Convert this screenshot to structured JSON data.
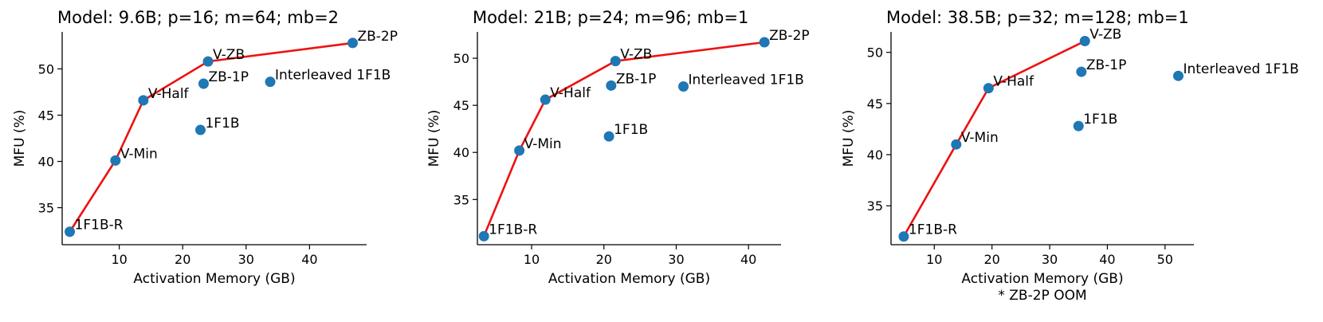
{
  "chart_data": [
    {
      "type": "scatter",
      "title": "Model: 9.6B; p=16; m=64; mb=2",
      "xlabel": "Activation Memory (GB)",
      "ylabel": "MFU (%)",
      "note": "",
      "xlim": [
        1,
        49
      ],
      "ylim": [
        31,
        54
      ],
      "xticks": [
        10,
        20,
        30,
        40
      ],
      "yticks": [
        35,
        40,
        45,
        50
      ],
      "frontier_color": "#ee1111",
      "point_color": "#1f77b4",
      "frontier": [
        "1F1B-R",
        "V-Min",
        "V-Half",
        "V-ZB",
        "ZB-2P"
      ],
      "points": [
        {
          "label": "1F1B-R",
          "x": 2.2,
          "y": 32.4
        },
        {
          "label": "V-Min",
          "x": 9.4,
          "y": 40.1
        },
        {
          "label": "V-Half",
          "x": 13.8,
          "y": 46.6
        },
        {
          "label": "V-ZB",
          "x": 24.0,
          "y": 50.8
        },
        {
          "label": "ZB-1P",
          "x": 23.3,
          "y": 48.4
        },
        {
          "label": "1F1B",
          "x": 22.8,
          "y": 43.4
        },
        {
          "label": "Interleaved 1F1B",
          "x": 33.8,
          "y": 48.6
        },
        {
          "label": "ZB-2P",
          "x": 46.8,
          "y": 52.8
        }
      ]
    },
    {
      "type": "scatter",
      "title": "Model: 21B; p=24; m=96; mb=1",
      "xlabel": "Activation Memory (GB)",
      "ylabel": "MFU (%)",
      "note": "",
      "xlim": [
        2.5,
        44.5
      ],
      "ylim": [
        30.2,
        52.8
      ],
      "xticks": [
        10,
        20,
        30,
        40
      ],
      "yticks": [
        35,
        40,
        45,
        50
      ],
      "frontier_color": "#ee1111",
      "point_color": "#1f77b4",
      "frontier": [
        "1F1B-R",
        "V-Min",
        "V-Half",
        "V-ZB",
        "ZB-2P"
      ],
      "points": [
        {
          "label": "1F1B-R",
          "x": 3.4,
          "y": 31.1
        },
        {
          "label": "V-Min",
          "x": 8.3,
          "y": 40.2
        },
        {
          "label": "V-Half",
          "x": 11.9,
          "y": 45.6
        },
        {
          "label": "V-ZB",
          "x": 21.6,
          "y": 49.7
        },
        {
          "label": "ZB-1P",
          "x": 21.0,
          "y": 47.1
        },
        {
          "label": "1F1B",
          "x": 20.7,
          "y": 41.7
        },
        {
          "label": "Interleaved 1F1B",
          "x": 31.0,
          "y": 47.0
        },
        {
          "label": "ZB-2P",
          "x": 42.2,
          "y": 51.7
        }
      ]
    },
    {
      "type": "scatter",
      "title": "Model: 38.5B; p=32; m=128; mb=1",
      "xlabel": "Activation Memory (GB)",
      "ylabel": "MFU (%)",
      "note": "* ZB-2P OOM",
      "xlim": [
        2.5,
        55
      ],
      "ylim": [
        31.2,
        52
      ],
      "xticks": [
        10,
        20,
        30,
        40,
        50
      ],
      "yticks": [
        35,
        40,
        45,
        50
      ],
      "frontier_color": "#ee1111",
      "point_color": "#1f77b4",
      "frontier": [
        "1F1B-R",
        "V-Min",
        "V-Half",
        "V-ZB"
      ],
      "points": [
        {
          "label": "1F1B-R",
          "x": 4.7,
          "y": 32.0
        },
        {
          "label": "V-Min",
          "x": 13.8,
          "y": 41.0
        },
        {
          "label": "V-Half",
          "x": 19.4,
          "y": 46.5
        },
        {
          "label": "V-ZB",
          "x": 36.1,
          "y": 51.1
        },
        {
          "label": "ZB-1P",
          "x": 35.5,
          "y": 48.1
        },
        {
          "label": "1F1B",
          "x": 35.0,
          "y": 42.8
        },
        {
          "label": "Interleaved 1F1B",
          "x": 52.3,
          "y": 47.7
        }
      ]
    }
  ]
}
